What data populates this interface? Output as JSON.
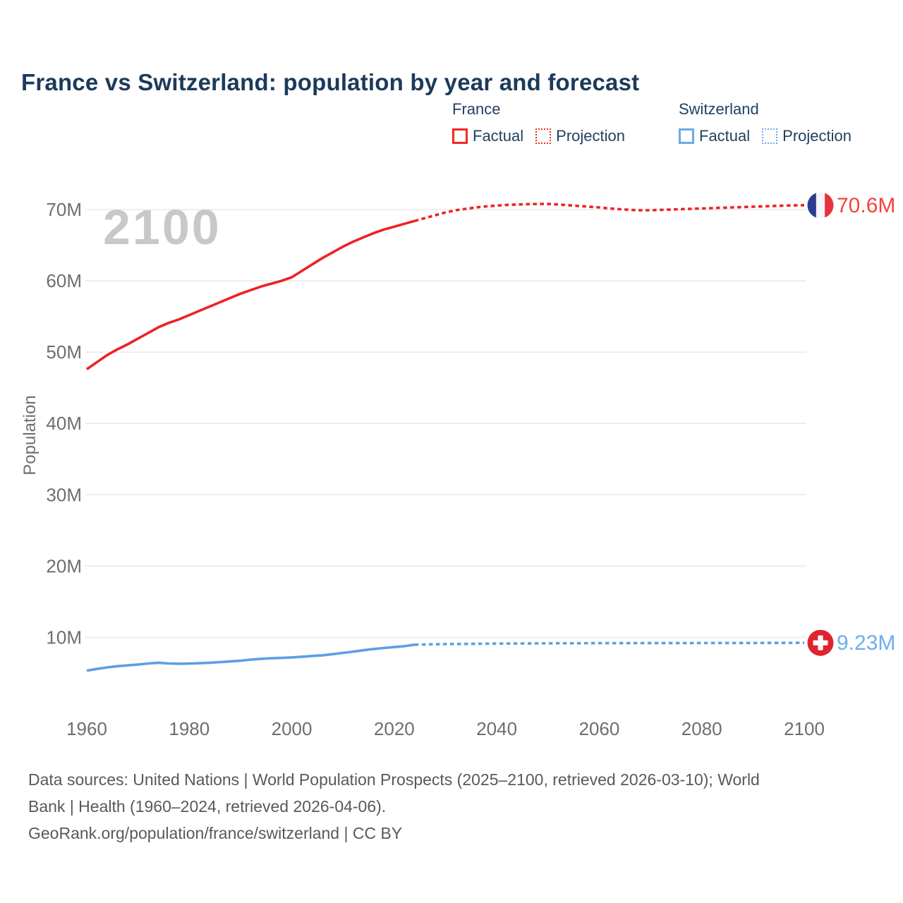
{
  "title": "France vs Switzerland: population by year and forecast",
  "watermark": "2100",
  "legend": {
    "france": {
      "header": "France",
      "factual": "Factual",
      "projection": "Projection"
    },
    "switzerland": {
      "header": "Switzerland",
      "factual": "Factual",
      "projection": "Projection"
    }
  },
  "end_labels": {
    "france": "70.6M",
    "switzerland": "9.23M"
  },
  "footer": {
    "lines": [
      "Data sources: United Nations | World Population Prospects (2025–2100, retrieved 2026-03-10); World",
      "Bank | Health (1960–2024, retrieved 2026-04-06).",
      "GeoRank.org/population/france/switzerland | CC BY"
    ]
  },
  "colors": {
    "france_line": "#ee2124",
    "france_label": "#f0463e",
    "switzerland_line": "#5ba0e2",
    "switzerland_label": "#6caeec",
    "grid": "#eaeaea",
    "tick": "#6e6e6e",
    "watermark": "#c8c8c8",
    "title": "#1c3a5a",
    "french_flag_blue": "#2b3d8f",
    "french_flag_red": "#e8323e",
    "swiss_flag_red": "#e0242e"
  },
  "chart_data": {
    "type": "line",
    "title": "France vs Switzerland: population by year and forecast",
    "xlabel": "",
    "ylabel": "Population",
    "units": "millions",
    "xlim": [
      1960,
      2100
    ],
    "ylim": [
      0,
      74
    ],
    "grid": "horizontal",
    "legend_position": "top-right",
    "x_ticks": [
      1960,
      1980,
      2000,
      2020,
      2040,
      2060,
      2080,
      2100
    ],
    "y_ticks": [
      {
        "value": 10,
        "label": "10M"
      },
      {
        "value": 20,
        "label": "20M"
      },
      {
        "value": 30,
        "label": "30M"
      },
      {
        "value": 40,
        "label": "40M"
      },
      {
        "value": 50,
        "label": "50M"
      },
      {
        "value": 60,
        "label": "60M"
      },
      {
        "value": 70,
        "label": "70M"
      }
    ],
    "series": [
      {
        "name": "France Factual",
        "country": "France",
        "kind": "factual",
        "style": "solid",
        "color_key": "france_line",
        "points": [
          [
            1960,
            47.6
          ],
          [
            1962,
            48.6
          ],
          [
            1964,
            49.6
          ],
          [
            1966,
            50.4
          ],
          [
            1968,
            51.1
          ],
          [
            1970,
            51.9
          ],
          [
            1972,
            52.7
          ],
          [
            1974,
            53.5
          ],
          [
            1976,
            54.1
          ],
          [
            1978,
            54.6
          ],
          [
            1980,
            55.2
          ],
          [
            1982,
            55.8
          ],
          [
            1984,
            56.4
          ],
          [
            1986,
            57.0
          ],
          [
            1988,
            57.6
          ],
          [
            1990,
            58.2
          ],
          [
            1992,
            58.7
          ],
          [
            1994,
            59.2
          ],
          [
            1996,
            59.6
          ],
          [
            1998,
            60.0
          ],
          [
            2000,
            60.5
          ],
          [
            2002,
            61.4
          ],
          [
            2004,
            62.3
          ],
          [
            2006,
            63.2
          ],
          [
            2008,
            64.0
          ],
          [
            2010,
            64.8
          ],
          [
            2012,
            65.5
          ],
          [
            2014,
            66.1
          ],
          [
            2016,
            66.7
          ],
          [
            2018,
            67.2
          ],
          [
            2020,
            67.6
          ],
          [
            2022,
            68.0
          ],
          [
            2024,
            68.4
          ]
        ]
      },
      {
        "name": "France Projection",
        "country": "France",
        "kind": "projection",
        "style": "dotted",
        "color_key": "france_line",
        "points": [
          [
            2024,
            68.4
          ],
          [
            2026,
            68.8
          ],
          [
            2028,
            69.2
          ],
          [
            2030,
            69.6
          ],
          [
            2032,
            69.9
          ],
          [
            2034,
            70.1
          ],
          [
            2036,
            70.3
          ],
          [
            2038,
            70.45
          ],
          [
            2040,
            70.55
          ],
          [
            2042,
            70.65
          ],
          [
            2044,
            70.7
          ],
          [
            2046,
            70.75
          ],
          [
            2048,
            70.78
          ],
          [
            2050,
            70.78
          ],
          [
            2052,
            70.7
          ],
          [
            2054,
            70.6
          ],
          [
            2056,
            70.5
          ],
          [
            2058,
            70.4
          ],
          [
            2060,
            70.3
          ],
          [
            2062,
            70.15
          ],
          [
            2064,
            70.05
          ],
          [
            2066,
            69.95
          ],
          [
            2068,
            69.9
          ],
          [
            2070,
            69.9
          ],
          [
            2072,
            69.95
          ],
          [
            2074,
            70.0
          ],
          [
            2076,
            70.05
          ],
          [
            2078,
            70.1
          ],
          [
            2080,
            70.15
          ],
          [
            2082,
            70.2
          ],
          [
            2084,
            70.25
          ],
          [
            2086,
            70.3
          ],
          [
            2088,
            70.35
          ],
          [
            2090,
            70.4
          ],
          [
            2092,
            70.45
          ],
          [
            2094,
            70.5
          ],
          [
            2096,
            70.55
          ],
          [
            2098,
            70.58
          ],
          [
            2100,
            70.6
          ]
        ]
      },
      {
        "name": "Switzerland Factual",
        "country": "Switzerland",
        "kind": "factual",
        "style": "solid",
        "color_key": "switzerland_line",
        "points": [
          [
            1960,
            5.33
          ],
          [
            1962,
            5.57
          ],
          [
            1964,
            5.79
          ],
          [
            1966,
            5.96
          ],
          [
            1968,
            6.07
          ],
          [
            1970,
            6.19
          ],
          [
            1972,
            6.33
          ],
          [
            1974,
            6.44
          ],
          [
            1976,
            6.33
          ],
          [
            1978,
            6.3
          ],
          [
            1980,
            6.32
          ],
          [
            1982,
            6.37
          ],
          [
            1984,
            6.44
          ],
          [
            1986,
            6.52
          ],
          [
            1988,
            6.62
          ],
          [
            1990,
            6.72
          ],
          [
            1992,
            6.88
          ],
          [
            1994,
            6.99
          ],
          [
            1996,
            7.06
          ],
          [
            1998,
            7.11
          ],
          [
            2000,
            7.18
          ],
          [
            2002,
            7.28
          ],
          [
            2004,
            7.39
          ],
          [
            2006,
            7.48
          ],
          [
            2008,
            7.65
          ],
          [
            2010,
            7.82
          ],
          [
            2012,
            7.99
          ],
          [
            2014,
            8.19
          ],
          [
            2016,
            8.37
          ],
          [
            2018,
            8.51
          ],
          [
            2020,
            8.64
          ],
          [
            2022,
            8.77
          ],
          [
            2024,
            8.97
          ]
        ]
      },
      {
        "name": "Switzerland Projection",
        "country": "Switzerland",
        "kind": "projection",
        "style": "dotted",
        "color_key": "switzerland_line",
        "points": [
          [
            2024,
            8.97
          ],
          [
            2030,
            9.05
          ],
          [
            2040,
            9.12
          ],
          [
            2050,
            9.16
          ],
          [
            2060,
            9.18
          ],
          [
            2070,
            9.19
          ],
          [
            2080,
            9.2
          ],
          [
            2090,
            9.21
          ],
          [
            2100,
            9.23
          ]
        ]
      }
    ],
    "end_markers": [
      {
        "flag": "france",
        "year": 2100,
        "value": 70.6,
        "label": "70.6M"
      },
      {
        "flag": "switzerland",
        "year": 2100,
        "value": 9.23,
        "label": "9.23M"
      }
    ],
    "annotations": [
      {
        "text": "2100",
        "role": "watermark"
      }
    ]
  }
}
